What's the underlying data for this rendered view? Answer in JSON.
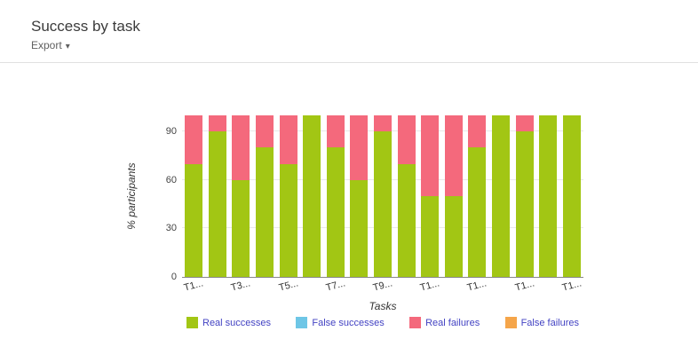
{
  "page": {
    "title": "Success by task",
    "export_label": "Export",
    "export_caret": "▾"
  },
  "chart_data": {
    "type": "bar",
    "stacked": true,
    "title": "Success by task",
    "xlabel": "Tasks",
    "ylabel": "% participants",
    "ylim": [
      0,
      100
    ],
    "yticks": [
      0,
      30,
      60,
      90
    ],
    "grid": true,
    "legend_position": "bottom",
    "categories": [
      "T1...",
      "",
      "T3...",
      "",
      "T5...",
      "",
      "T7...",
      "",
      "T9...",
      "",
      "T1...",
      "",
      "T1...",
      "",
      "T1...",
      "",
      "T1..."
    ],
    "series": [
      {
        "name": "Real successes",
        "color": "#a2c614",
        "values": [
          70,
          90,
          60,
          80,
          70,
          100,
          80,
          60,
          90,
          70,
          50,
          50,
          80,
          100,
          90,
          100,
          100
        ]
      },
      {
        "name": "False successes",
        "color": "#6ec6e6",
        "values": [
          0,
          0,
          0,
          0,
          0,
          0,
          0,
          0,
          0,
          0,
          0,
          0,
          0,
          0,
          0,
          0,
          0
        ]
      },
      {
        "name": "Real failures",
        "color": "#f4697c",
        "values": [
          30,
          10,
          40,
          20,
          30,
          0,
          20,
          40,
          10,
          30,
          50,
          50,
          20,
          0,
          10,
          0,
          0
        ]
      },
      {
        "name": "False failures",
        "color": "#f5a54a",
        "values": [
          0,
          0,
          0,
          0,
          0,
          0,
          0,
          0,
          0,
          0,
          0,
          0,
          0,
          0,
          0,
          0,
          0
        ]
      }
    ]
  }
}
